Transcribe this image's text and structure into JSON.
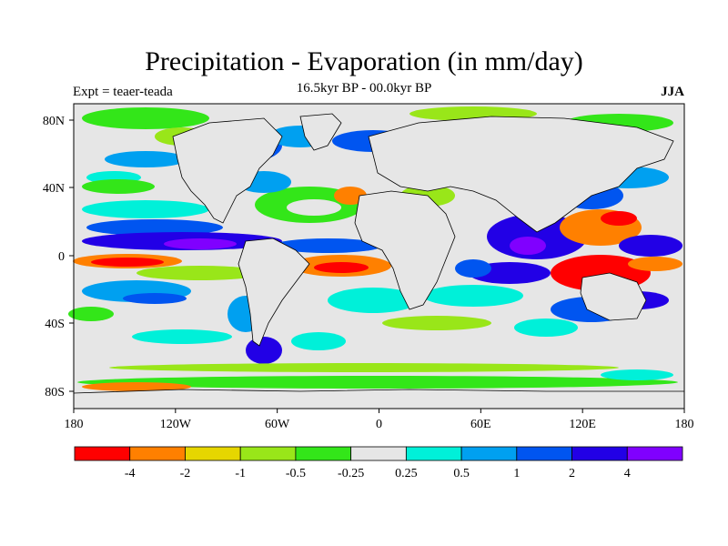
{
  "header": {
    "title": "Precipitation - Evaporation (in mm/day)",
    "left_label": "Expt = teaer-teada",
    "center_label": "16.5kyr BP - 00.0kyr BP",
    "right_label": "JJA"
  },
  "axes": {
    "y_ticks": [
      "80N",
      "40N",
      "0",
      "40S",
      "80S"
    ],
    "x_ticks": [
      "180",
      "120W",
      "60W",
      "0",
      "60E",
      "120E",
      "180"
    ]
  },
  "colorbar": {
    "colors": [
      "#ff0000",
      "#ff8000",
      "#e6d600",
      "#99e619",
      "#33e619",
      "#e6e6e6",
      "#00f0d9",
      "#00a0f0",
      "#0055f0",
      "#2200e6",
      "#8000ff"
    ],
    "labels": [
      "-4",
      "-2",
      "-1",
      "-0.5",
      "-0.25",
      "0.25",
      "0.5",
      "1",
      "2",
      "4"
    ]
  },
  "map": {
    "background": "#e6e6e6",
    "coast_color": "#000000"
  }
}
